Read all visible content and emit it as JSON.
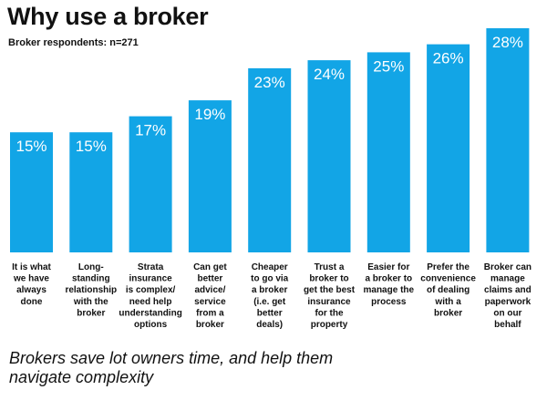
{
  "title": "Why use a broker",
  "subtitle": "Broker respondents: n=271",
  "footnote": "Brokers save lot owners time, and help them navigate complexity",
  "colors": {
    "bar": "#12a5e6",
    "value_label": "#ffffff",
    "text": "#111111"
  },
  "chart_data": {
    "type": "bar",
    "title": "Why use a broker",
    "subtitle": "Broker respondents: n=271",
    "xlabel": "",
    "ylabel": "",
    "ylim": [
      0,
      28
    ],
    "grid": false,
    "value_suffix": "%",
    "categories": [
      [
        "It is what",
        "we have",
        "always",
        "done"
      ],
      [
        "Long-",
        "standing",
        "relationship",
        "with the",
        "broker"
      ],
      [
        "Strata",
        "insurance",
        "is complex/",
        "need help",
        "understanding",
        "options"
      ],
      [
        "Can get",
        "better",
        "advice/",
        "service",
        "from a",
        "broker"
      ],
      [
        "Cheaper",
        "to go via",
        "a broker",
        "(i.e. get",
        "better",
        "deals)"
      ],
      [
        "Trust a",
        "broker to",
        "get the best",
        "insurance",
        "for the",
        "property"
      ],
      [
        "Easier for",
        "a broker to",
        "manage the",
        "process"
      ],
      [
        "Prefer the",
        "convenience",
        "of dealing",
        "with a",
        "broker"
      ],
      [
        "Broker can",
        "manage",
        "claims and",
        "paperwork",
        "on our",
        "behalf"
      ]
    ],
    "values": [
      15,
      15,
      17,
      19,
      23,
      24,
      25,
      26,
      28
    ]
  }
}
